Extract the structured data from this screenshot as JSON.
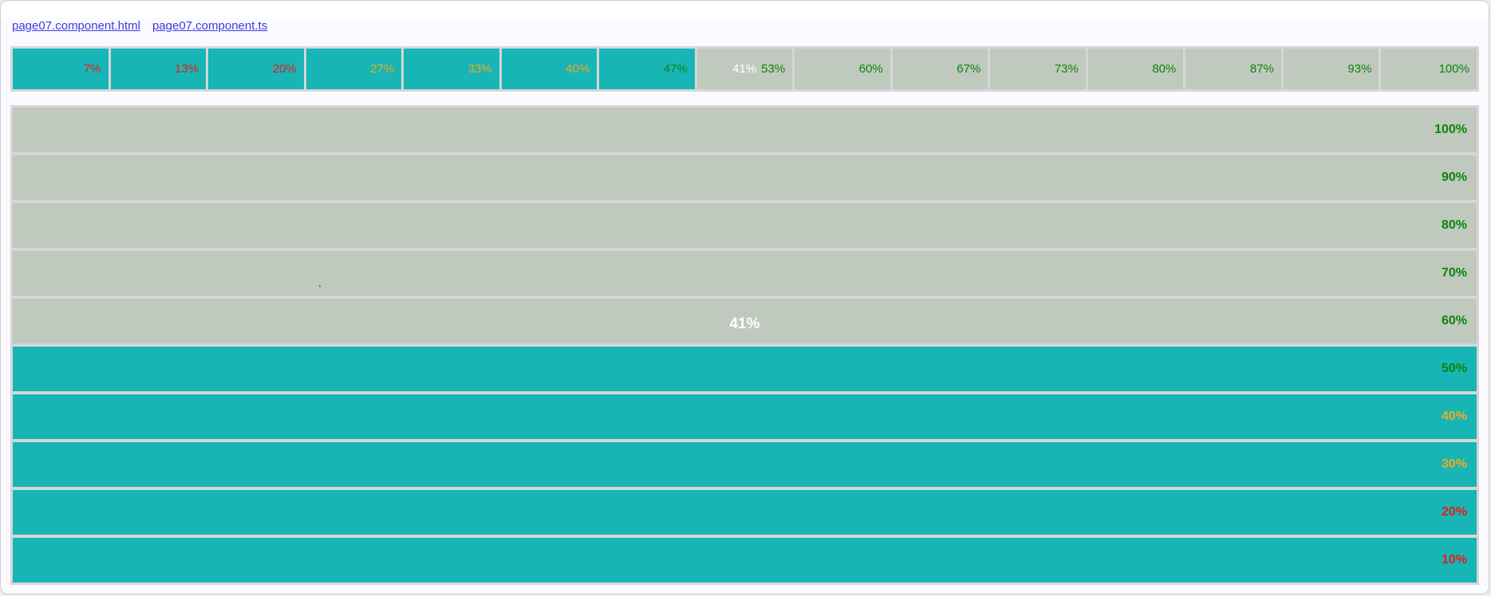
{
  "nav": {
    "links": [
      {
        "label": "page07.component.html"
      },
      {
        "label": "page07.component.ts"
      }
    ]
  },
  "progress": {
    "value_label": "41%",
    "horizontal": {
      "segments": [
        {
          "label": "7%",
          "level": "red",
          "filled": true,
          "shows_value": false
        },
        {
          "label": "13%",
          "level": "red",
          "filled": true,
          "shows_value": false
        },
        {
          "label": "20%",
          "level": "red",
          "filled": true,
          "shows_value": false
        },
        {
          "label": "27%",
          "level": "orange",
          "filled": true,
          "shows_value": false
        },
        {
          "label": "33%",
          "level": "orange",
          "filled": true,
          "shows_value": false
        },
        {
          "label": "40%",
          "level": "orange",
          "filled": true,
          "shows_value": false
        },
        {
          "label": "47%",
          "level": "green",
          "filled": true,
          "shows_value": false
        },
        {
          "label": "53%",
          "level": "green",
          "filled": false,
          "shows_value": true
        },
        {
          "label": "60%",
          "level": "green",
          "filled": false,
          "shows_value": false
        },
        {
          "label": "67%",
          "level": "green",
          "filled": false,
          "shows_value": false
        },
        {
          "label": "73%",
          "level": "green",
          "filled": false,
          "shows_value": false
        },
        {
          "label": "80%",
          "level": "green",
          "filled": false,
          "shows_value": false
        },
        {
          "label": "87%",
          "level": "green",
          "filled": false,
          "shows_value": false
        },
        {
          "label": "93%",
          "level": "green",
          "filled": false,
          "shows_value": false
        },
        {
          "label": "100%",
          "level": "green",
          "filled": false,
          "shows_value": false
        }
      ]
    },
    "vertical": {
      "rows": [
        {
          "label": "100%",
          "level": "green",
          "filled": false,
          "shows_value": false
        },
        {
          "label": "90%",
          "level": "green",
          "filled": false,
          "shows_value": false
        },
        {
          "label": "80%",
          "level": "green",
          "filled": false,
          "shows_value": false
        },
        {
          "label": "70%",
          "level": "green",
          "filled": false,
          "shows_value": false
        },
        {
          "label": "60%",
          "level": "green",
          "filled": false,
          "shows_value": true
        },
        {
          "label": "50%",
          "level": "green",
          "filled": true,
          "shows_value": false
        },
        {
          "label": "40%",
          "level": "orange",
          "filled": true,
          "shows_value": false
        },
        {
          "label": "30%",
          "level": "orange",
          "filled": true,
          "shows_value": false
        },
        {
          "label": "20%",
          "level": "red",
          "filled": true,
          "shows_value": false
        },
        {
          "label": "10%",
          "level": "red",
          "filled": true,
          "shows_value": false
        }
      ]
    }
  },
  "colors": {
    "filled": "#17b5b5",
    "unfilled": "#bfc9bd",
    "track": "#d6d6d8",
    "red": "#e51b1b",
    "orange": "#eeaa22",
    "green": "#0c840c",
    "value_text": "#ffffff",
    "link": "#4038e0",
    "page_background": "#fbfaff"
  },
  "artifacts": {
    "stray_dot": "."
  }
}
